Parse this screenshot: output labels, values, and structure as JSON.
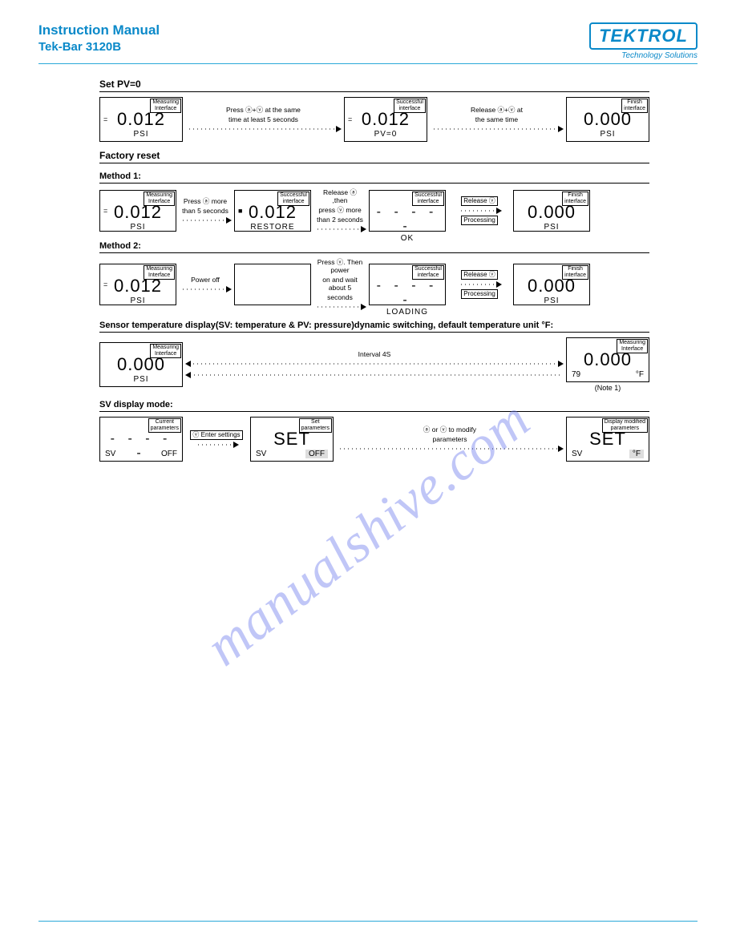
{
  "colors": {
    "brand": "#0a89c9",
    "rule": "#2aa8d8",
    "text": "#000000",
    "watermark": "rgba(106,120,236,0.42)"
  },
  "header": {
    "title1": "Instruction Manual",
    "title2": "Tek-Bar 3120B",
    "logo_text": "TEKTROL",
    "tagline": "Technology Solutions"
  },
  "watermark": "manualshive.com",
  "sections": {
    "setpv": {
      "title": "Set PV=0",
      "row": [
        {
          "type": "box",
          "tag": "Measuring\nInterface",
          "big": "0.012",
          "marker": "=",
          "unit": "PSI"
        },
        {
          "type": "arrow",
          "lbl": "Press ⓐ+ⓥ at the same",
          "lbl2": "time at least 5 seconds"
        },
        {
          "type": "box",
          "tag": "Successful\ninterface",
          "big": "0.012",
          "marker": "=",
          "unit": "PV=0"
        },
        {
          "type": "arrow",
          "lbl": "Release ⓐ+ⓥ at",
          "lbl2": "the same time"
        },
        {
          "type": "box",
          "tag": "Finish\ninterface",
          "big": "0.000",
          "unit": "PSI"
        }
      ]
    },
    "factory": {
      "title": "Factory reset",
      "m1_title": "Method 1:",
      "m1": [
        {
          "type": "box",
          "tag": "Measuring\nInterface",
          "big": "0.012",
          "marker": "=",
          "unit": "PSI"
        },
        {
          "type": "arrow",
          "lbl": "Press ⓐ more",
          "lbl2": "than 5 seconds"
        },
        {
          "type": "box",
          "tag": "Successful\ninterface",
          "big": "0.012",
          "marker": "■",
          "unit": "RESTORE"
        },
        {
          "type": "arrow",
          "lbl": "Release ⓐ ,then",
          "lbl2": "press ⓥ more",
          "lbl3": "than 2 seconds"
        },
        {
          "type": "box",
          "tag": "Successful\ninterface",
          "big": "- - - - -",
          "dash": true,
          "unit": "OK"
        },
        {
          "type": "arrow",
          "boxes": [
            "Release ⓥ",
            "Processing"
          ]
        },
        {
          "type": "box",
          "tag": "Finish\ninterface",
          "big": "0.000",
          "unit": "PSI"
        }
      ],
      "m2_title": "Method 2:",
      "m2": [
        {
          "type": "box",
          "tag": "Measuring\nInterface",
          "big": "0.012",
          "marker": "=",
          "unit": "PSI"
        },
        {
          "type": "arrow",
          "lbl": "Power off"
        },
        {
          "type": "box",
          "empty": true
        },
        {
          "type": "arrow",
          "lbl": "Press ⓥ. Then power",
          "lbl2": "on and wait about 5",
          "lbl3": "seconds"
        },
        {
          "type": "box",
          "tag": "Successful\ninterface",
          "big": "- - - - -",
          "dash": true,
          "unit": "LOADING"
        },
        {
          "type": "arrow",
          "boxes": [
            "Release ⓥ",
            "Processing"
          ]
        },
        {
          "type": "box",
          "tag": "Finish\ninterface",
          "big": "0.000",
          "unit": "PSI"
        }
      ]
    },
    "sensor": {
      "title": "Sensor temperature display(SV: temperature & PV: pressure)dynamic switching, default temperature unit °F:",
      "row": [
        {
          "type": "box",
          "tag": "Measuring\nInterface",
          "big": "0.000",
          "unit": "PSI"
        },
        {
          "type": "arrow",
          "lbl": "Interval 4S",
          "bi": true
        },
        {
          "type": "box",
          "tag": "Measuring\nInterface",
          "big": "0.000",
          "unit_row": {
            "l": "79",
            "r": "°F"
          },
          "note": "(Note 1)"
        }
      ]
    },
    "svmode": {
      "title": "SV display mode:",
      "row": [
        {
          "type": "box",
          "tag": "Current\nparameters",
          "big": "- - - - -",
          "dash": true,
          "unit_row": {
            "l": "SV",
            "r": "OFF"
          }
        },
        {
          "type": "arrow",
          "boxes": [
            "ⓥ Enter settings"
          ]
        },
        {
          "type": "box",
          "tag": "Set\nparameters",
          "big": "SET",
          "unit_row": {
            "l": "SV",
            "r": "OFF",
            "hl": true
          }
        },
        {
          "type": "arrow",
          "lbl": "ⓐ or ⓥ to modify",
          "lbl2": "parameters"
        },
        {
          "type": "box",
          "tag": "Display modified\nparameters",
          "big": "SET",
          "unit_row": {
            "l": "SV",
            "r": "°F",
            "hl": true
          }
        }
      ]
    }
  }
}
